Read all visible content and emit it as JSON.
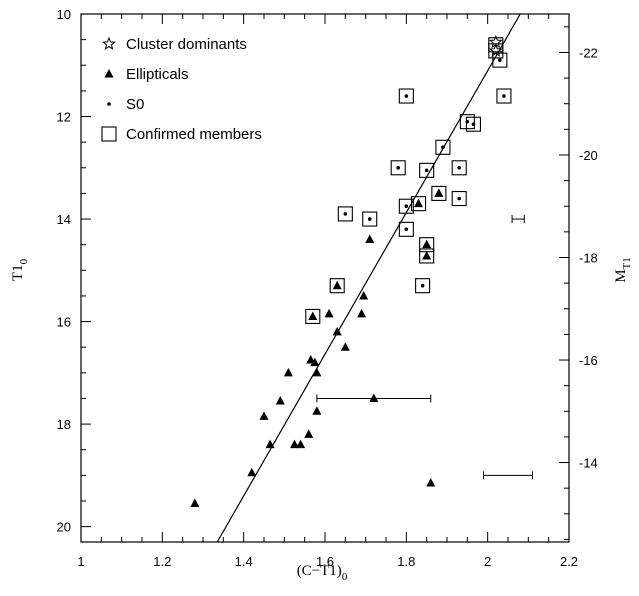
{
  "chart_data": {
    "type": "scatter",
    "title": "",
    "xlabel": "(C−T1)",
    "xlabel_sub": "0",
    "ylabel": "T1",
    "ylabel_sub": "0",
    "ylabel_right": "M",
    "ylabel_right_sub": "T1",
    "xlim": [
      1.0,
      2.2
    ],
    "ylim": [
      20.3,
      10.0
    ],
    "xticks": [
      "1",
      "1.2",
      "1.4",
      "1.6",
      "1.8",
      "2",
      "2.2"
    ],
    "yticks": [
      "10",
      "12",
      "14",
      "16",
      "18",
      "20"
    ],
    "right_axis": {
      "ticks": [
        "-22",
        "-20",
        "-18",
        "-16",
        "-14"
      ],
      "tick_positions_T1": [
        10.75,
        12.75,
        14.75,
        16.75,
        18.75
      ]
    },
    "legend": {
      "position": "top-left",
      "entries": [
        {
          "marker": "star",
          "label": "Cluster dominants"
        },
        {
          "marker": "triangle",
          "label": "Ellipticals"
        },
        {
          "marker": "dot",
          "label": "S0"
        },
        {
          "marker": "square",
          "label": "Confirmed members"
        }
      ]
    },
    "series": [
      {
        "name": "Cluster dominants",
        "marker": "star",
        "points": [
          [
            2.02,
            10.55
          ],
          [
            2.02,
            10.72
          ]
        ]
      },
      {
        "name": "Ellipticals",
        "marker": "triangle",
        "points": [
          [
            1.28,
            19.55
          ],
          [
            1.42,
            18.95
          ],
          [
            1.45,
            17.85
          ],
          [
            1.465,
            18.4
          ],
          [
            1.49,
            17.55
          ],
          [
            1.51,
            17.0
          ],
          [
            1.525,
            18.4
          ],
          [
            1.54,
            18.4
          ],
          [
            1.56,
            18.2
          ],
          [
            1.565,
            16.75
          ],
          [
            1.575,
            16.8
          ],
          [
            1.58,
            17.75
          ],
          [
            1.58,
            17.0
          ],
          [
            1.61,
            15.85
          ],
          [
            1.63,
            16.2
          ],
          [
            1.65,
            16.5
          ],
          [
            1.69,
            15.85
          ],
          [
            1.695,
            15.5
          ],
          [
            1.71,
            14.4
          ],
          [
            1.72,
            17.5
          ],
          [
            1.86,
            19.15
          ],
          [
            1.57,
            15.9
          ],
          [
            1.63,
            15.3
          ],
          [
            1.83,
            13.7
          ],
          [
            1.85,
            14.5
          ],
          [
            1.85,
            14.72
          ],
          [
            1.88,
            13.5
          ]
        ]
      },
      {
        "name": "S0",
        "marker": "dot",
        "points": [
          [
            1.8,
            11.6
          ],
          [
            1.95,
            12.1
          ],
          [
            1.965,
            12.15
          ],
          [
            2.04,
            11.6
          ],
          [
            2.03,
            10.9
          ],
          [
            1.89,
            12.6
          ],
          [
            1.78,
            13.0
          ],
          [
            1.85,
            13.05
          ],
          [
            1.93,
            13.0
          ],
          [
            1.8,
            13.75
          ],
          [
            1.93,
            13.6
          ],
          [
            1.65,
            13.9
          ],
          [
            1.71,
            14.0
          ],
          [
            1.8,
            14.2
          ],
          [
            1.84,
            15.3
          ]
        ]
      },
      {
        "name": "Confirmed members",
        "marker": "square",
        "points": [
          [
            2.02,
            10.6
          ],
          [
            2.02,
            10.72
          ],
          [
            2.03,
            10.9
          ],
          [
            2.04,
            11.6
          ],
          [
            1.8,
            11.6
          ],
          [
            1.95,
            12.1
          ],
          [
            1.965,
            12.15
          ],
          [
            1.89,
            12.6
          ],
          [
            1.78,
            13.0
          ],
          [
            1.85,
            13.05
          ],
          [
            1.93,
            13.0
          ],
          [
            1.88,
            13.5
          ],
          [
            1.83,
            13.7
          ],
          [
            1.8,
            13.75
          ],
          [
            1.93,
            13.6
          ],
          [
            1.65,
            13.9
          ],
          [
            1.71,
            14.0
          ],
          [
            1.8,
            14.2
          ],
          [
            1.85,
            14.5
          ],
          [
            1.85,
            14.72
          ],
          [
            1.63,
            15.3
          ],
          [
            1.84,
            15.3
          ],
          [
            1.57,
            15.9
          ]
        ]
      }
    ],
    "fit_line": {
      "points": [
        [
          1.335,
          20.3
        ],
        [
          2.08,
          10.0
        ]
      ]
    },
    "error_bars": [
      {
        "x": 2.075,
        "y": 14.0,
        "xerr": 0.015
      },
      {
        "x": 1.72,
        "y": 17.5,
        "xerr": 0.14
      },
      {
        "x": 2.05,
        "y": 19.0,
        "xerr": 0.06
      }
    ],
    "grid": false
  }
}
